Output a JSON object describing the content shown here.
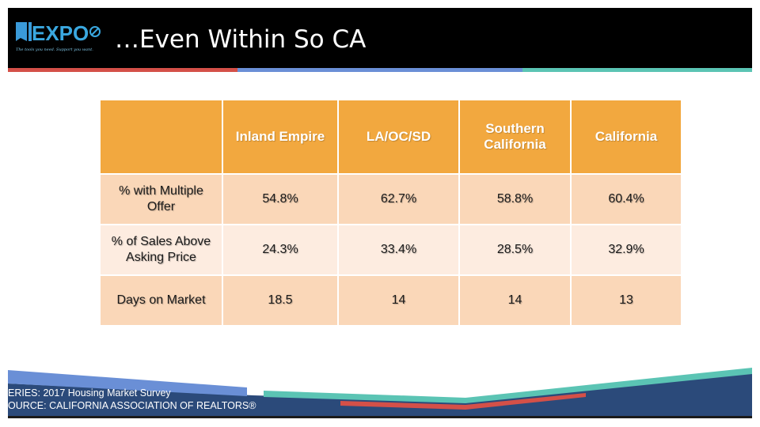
{
  "header": {
    "logo_text": "EXPO",
    "logo_tagline": "The tools you need. Support you want.",
    "title": "…Even Within So CA"
  },
  "colors": {
    "header_bg": "#000000",
    "accent_red": "#d45048",
    "accent_blue": "#6a8fd6",
    "accent_teal": "#5bc4b4",
    "table_header": "#f2a83f",
    "row_dark": "#fad7b8",
    "row_light": "#fdece0",
    "footer_navy": "#2b4a7a"
  },
  "table": {
    "columns": [
      "",
      "Inland Empire",
      "LA/OC/SD",
      "Southern California",
      "California"
    ],
    "rows": [
      {
        "label": "% with Multiple Offer",
        "values": [
          "54.8%",
          "62.7%",
          "58.8%",
          "60.4%"
        ]
      },
      {
        "label": "% of Sales Above Asking Price",
        "values": [
          "24.3%",
          "33.4%",
          "28.5%",
          "32.9%"
        ]
      },
      {
        "label": "Days on Market",
        "values": [
          "18.5",
          "14",
          "14",
          "13"
        ]
      }
    ]
  },
  "footer": {
    "series": "ERIES: 2017 Housing Market Survey",
    "source": "OURCE:  CALIFORNIA ASSOCIATION OF REALTORS®"
  }
}
